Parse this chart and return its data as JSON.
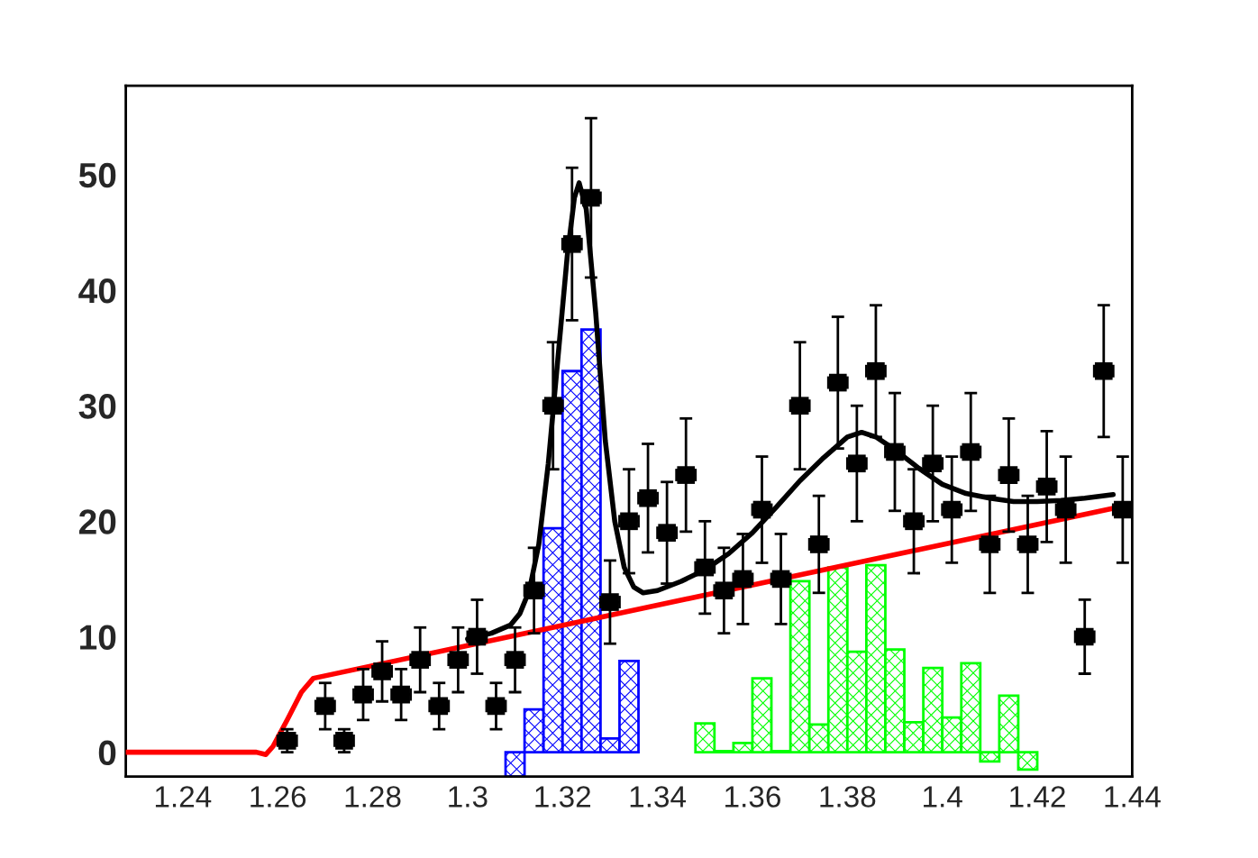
{
  "chart_data": {
    "type": "scatter",
    "xlim": [
      1.228,
      1.44
    ],
    "ylim": [
      -2.1,
      57.7
    ],
    "xticks": [
      1.24,
      1.26,
      1.28,
      1.3,
      1.32,
      1.34,
      1.36,
      1.38,
      1.4,
      1.42,
      1.44
    ],
    "yticks": [
      0,
      10,
      20,
      30,
      40,
      50
    ],
    "grid": false,
    "legend": false,
    "series": [
      {
        "type": "histogram",
        "color": "#0000ff",
        "bins": [
          1.308,
          1.312,
          1.316,
          1.32,
          1.324,
          1.328,
          1.332,
          1.336
        ],
        "values": [
          -2.1,
          3.7,
          19.4,
          33,
          36.6,
          1.2,
          7.9
        ]
      },
      {
        "type": "histogram",
        "color": "#00ff00",
        "bins": [
          1.348,
          1.352,
          1.356,
          1.36,
          1.364,
          1.368,
          1.372,
          1.376,
          1.38,
          1.384,
          1.388,
          1.392,
          1.396,
          1.4,
          1.404,
          1.408,
          1.412,
          1.416,
          1.42
        ],
        "values": [
          2.5,
          0.1,
          0.8,
          6.4,
          0.1,
          14.8,
          2.4,
          16,
          8.7,
          16.2,
          8.9,
          2.6,
          7.3,
          3.0,
          7.7,
          -0.8,
          4.9,
          -1.5
        ]
      },
      {
        "type": "line",
        "color": "#ff0000",
        "x": [
          1.228,
          1.2555,
          1.2575,
          1.259,
          1.262,
          1.265,
          1.2675,
          1.438
        ],
        "values": [
          0,
          0,
          -0.2,
          0.5,
          2.8,
          5.2,
          6.4,
          21.3
        ]
      },
      {
        "type": "line",
        "color": "#000000",
        "x": [
          1.3,
          1.305,
          1.309,
          1.311,
          1.313,
          1.315,
          1.317,
          1.319,
          1.321,
          1.3225,
          1.3235,
          1.325,
          1.327,
          1.329,
          1.331,
          1.333,
          1.335,
          1.337,
          1.34,
          1.345,
          1.35,
          1.355,
          1.36,
          1.365,
          1.37,
          1.375,
          1.38,
          1.383,
          1.386,
          1.39,
          1.395,
          1.4,
          1.405,
          1.41,
          1.415,
          1.42,
          1.425,
          1.43,
          1.436
        ],
        "values": [
          9.8,
          10.3,
          11,
          12,
          14,
          18,
          25,
          34,
          43,
          48,
          49.3,
          47,
          38,
          27,
          20,
          16,
          14.3,
          13.8,
          14,
          14.8,
          15.8,
          17.2,
          19,
          21.2,
          23.5,
          25.5,
          27.3,
          27.7,
          27.3,
          26.2,
          24.6,
          23.2,
          22.4,
          22,
          21.7,
          21.7,
          21.8,
          22,
          22.3
        ]
      },
      {
        "color": "#000000",
        "marker": "square",
        "x": [
          1.262,
          1.266,
          1.27,
          1.274,
          1.278,
          1.282,
          1.286,
          1.29,
          1.294,
          1.298,
          1.302,
          1.306,
          1.31,
          1.314,
          1.318,
          1.322,
          1.326,
          1.33,
          1.334,
          1.338,
          1.342,
          1.346,
          1.35,
          1.354,
          1.358,
          1.362,
          1.366,
          1.37,
          1.374,
          1.378,
          1.382,
          1.386,
          1.39,
          1.394,
          1.398,
          1.402,
          1.406,
          1.41,
          1.414,
          1.418,
          1.422,
          1.426,
          1.43,
          1.434,
          1.438
        ],
        "values": [
          1,
          null,
          4,
          1,
          5,
          7,
          5,
          8,
          4,
          8,
          10,
          4,
          8,
          14,
          30,
          44,
          48,
          13,
          20,
          22,
          19,
          24,
          16,
          14,
          15,
          21,
          15,
          30,
          18,
          32,
          25,
          33,
          26,
          20,
          25,
          21,
          26,
          18,
          24,
          18,
          23,
          21,
          10,
          33,
          21
        ],
        "errors": [
          1,
          null,
          2,
          1,
          2.2,
          2.6,
          2.2,
          2.8,
          2,
          2.8,
          3.2,
          2,
          2.8,
          3.7,
          5.5,
          6.6,
          6.9,
          3.6,
          4.5,
          4.7,
          4.4,
          4.9,
          4,
          3.7,
          3.9,
          4.6,
          3.9,
          5.5,
          4.2,
          5.7,
          5,
          5.7,
          5.1,
          4.5,
          5,
          4.6,
          5.1,
          4.2,
          4.9,
          4.2,
          4.8,
          4.6,
          3.2,
          5.7,
          4.6
        ],
        "xerrors": [
          0.002,
          null,
          0.002,
          0.002,
          0.002,
          0.002,
          0.002,
          0.002,
          0.002,
          0.002,
          0.002,
          0.002,
          0.002,
          0.002,
          0.002,
          0.002,
          0.002,
          0.002,
          0.002,
          0.002,
          0.002,
          0.002,
          0.002,
          0.002,
          0.002,
          0.002,
          0.002,
          0.002,
          0.002,
          0.002,
          0.002,
          0.002,
          0.002,
          0.002,
          0.002,
          0.002,
          0.002,
          0.002,
          0.002,
          0.002,
          0.002,
          0.002,
          0.002,
          0.002,
          0.002
        ]
      }
    ]
  }
}
